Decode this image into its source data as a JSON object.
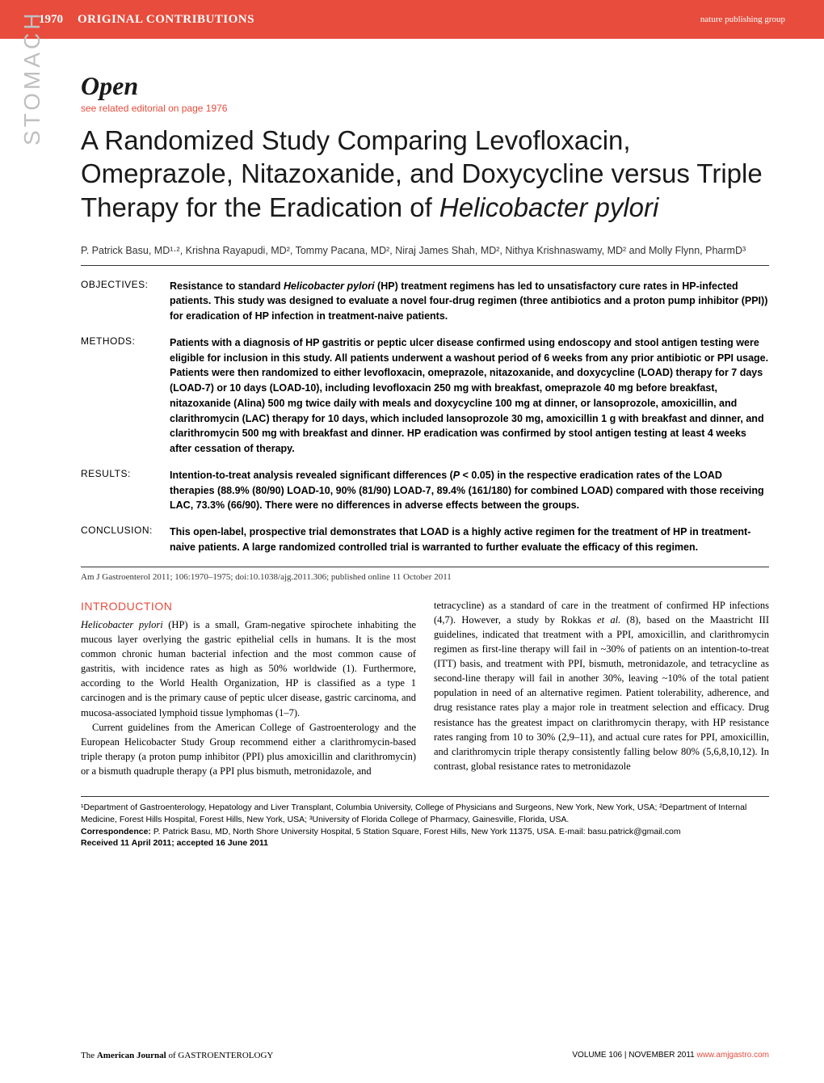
{
  "header": {
    "page_number": "1970",
    "section": "ORIGINAL CONTRIBUTIONS",
    "publisher": "nature publishing group"
  },
  "sidebar_label": "STOMACH",
  "open_label": "Open",
  "editorial_link": "see related editorial on page 1976",
  "title_part1": "A Randomized Study Comparing Levofloxacin, Omeprazole, Nitazoxanide, and Doxycycline versus Triple Therapy for the Eradication of ",
  "title_italic": "Helicobacter pylori",
  "authors": "P. Patrick Basu, MD¹·², Krishna Rayapudi, MD², Tommy Pacana, MD², Niraj James Shah, MD², Nithya Krishnaswamy, MD² and Molly Flynn, PharmD³",
  "abstract": {
    "objectives": {
      "label": "OBJECTIVES:",
      "text_prefix": "Resistance to standard ",
      "text_italic": "Helicobacter pylori",
      "text_suffix": " (HP) treatment regimens has led to unsatisfactory cure rates in HP-infected patients. This study was designed to evaluate a novel four-drug regimen (three antibiotics and a proton pump inhibitor (PPI)) for eradication of HP infection in treatment-naive patients."
    },
    "methods": {
      "label": "METHODS:",
      "text": "Patients with a diagnosis of HP gastritis or peptic ulcer disease confirmed using endoscopy and stool antigen testing were eligible for inclusion in this study. All patients underwent a washout period of 6 weeks from any prior antibiotic or PPI usage. Patients were then randomized to either levofloxacin, omeprazole, nitazoxanide, and doxycycline (LOAD) therapy for 7 days (LOAD-7) or 10 days (LOAD-10), including levofloxacin 250 mg with breakfast, omeprazole 40 mg before breakfast, nitazoxanide (Alina) 500 mg twice daily with meals and doxycycline 100 mg at dinner, or lansoprozole, amoxicillin, and clarithromycin (LAC) therapy for 10 days, which included lansoprozole 30 mg, amoxicillin 1 g with breakfast and dinner, and clarithromycin 500 mg with breakfast and dinner. HP eradication was confirmed by stool antigen testing at least 4 weeks after cessation of therapy."
    },
    "results": {
      "label": "RESULTS:",
      "text_prefix": "Intention-to-treat analysis revealed significant differences (",
      "text_italic": "P",
      "text_suffix": " < 0.05) in the respective eradication rates of the LOAD therapies (88.9% (80/90) LOAD-10, 90% (81/90) LOAD-7, 89.4% (161/180) for combined LOAD) compared with those receiving LAC, 73.3% (66/90). There were no differences in adverse effects between the groups."
    },
    "conclusion": {
      "label": "CONCLUSION:",
      "text": "This open-label, prospective trial demonstrates that LOAD is a highly active regimen for the treatment of HP in treatment-naive patients. A large randomized controlled trial is warranted to further evaluate the efficacy of this regimen."
    }
  },
  "citation": "Am J Gastroenterol 2011; 106:1970–1975; doi:10.1038/ajg.2011.306; published online 11 October 2011",
  "intro_heading": "INTRODUCTION",
  "body": {
    "col1_p1_italic": "Helicobacter pylori",
    "col1_p1": " (HP) is a small, Gram-negative spirochete inhabiting the mucous layer overlying the gastric epithelial cells in humans. It is the most common chronic human bacterial infection and the most common cause of gastritis, with incidence rates as high as 50% worldwide (1). Furthermore, according to the World Health Organization, HP is classified as a type 1 carcinogen and is the primary cause of peptic ulcer disease, gastric carcinoma, and mucosa-associated lymphoid tissue lymphomas (1–7).",
    "col1_p2": "Current guidelines from the American College of Gastroenterology and the European Helicobacter Study Group recommend either a clarithromycin-based triple therapy (a proton pump inhibitor (PPI) plus amoxicillin and clarithromycin) or a bismuth quadruple therapy (a PPI plus bismuth, metronidazole, and",
    "col2_p1_prefix": "tetracycline) as a standard of care in the treatment of confirmed HP infections (4,7). However, a study by Rokkas ",
    "col2_p1_italic": "et al.",
    "col2_p1_suffix": " (8), based on the Maastricht III guidelines, indicated that treatment with a PPI, amoxicillin, and clarithromycin regimen as first-line therapy will fail in ~30% of patients on an intention-to-treat (ITT) basis, and treatment with PPI, bismuth, metronidazole, and tetracycline as second-line therapy will fail in another 30%, leaving ~10% of the total patient population in need of an alternative regimen. Patient tolerability, adherence, and drug resistance rates play a major role in treatment selection and efficacy. Drug resistance has the greatest impact on clarithromycin therapy, with HP resistance rates ranging from 10 to 30% (2,9–11), and actual cure rates for PPI, amoxicillin, and clarithromycin triple therapy consistently falling below 80% (5,6,8,10,12). In contrast, global resistance rates to metronidazole"
  },
  "affiliations": {
    "line1_prefix": "¹Department of Gastroenterology, Hepatology and Liver Transplant, Columbia University, College of Physicians and Surgeons, New York, New York, USA; ²Department of Internal Medicine, Forest Hills Hospital, Forest Hills, New York, USA; ³University of Florida College of Pharmacy, Gainesville, Florida, USA.",
    "correspondence_label": "Correspondence:",
    "correspondence_text": " P. Patrick Basu, MD, North Shore University Hospital, 5 Station Square, Forest Hills, New York 11375, USA. E-mail: basu.patrick@gmail.com",
    "received": "Received 11 April 2011; accepted 16 June 2011"
  },
  "footer": {
    "journal_prefix": "The ",
    "journal_bold1": "American Journal ",
    "journal_mid": "of ",
    "journal_bold2": "GASTROENTEROLOGY",
    "volume": "VOLUME 106 | NOVEMBER 2011",
    "url": "www.amjgastro.com"
  },
  "colors": {
    "red": "#e74c3c",
    "text": "#1a1a1a",
    "gray": "#c0c0c0"
  }
}
